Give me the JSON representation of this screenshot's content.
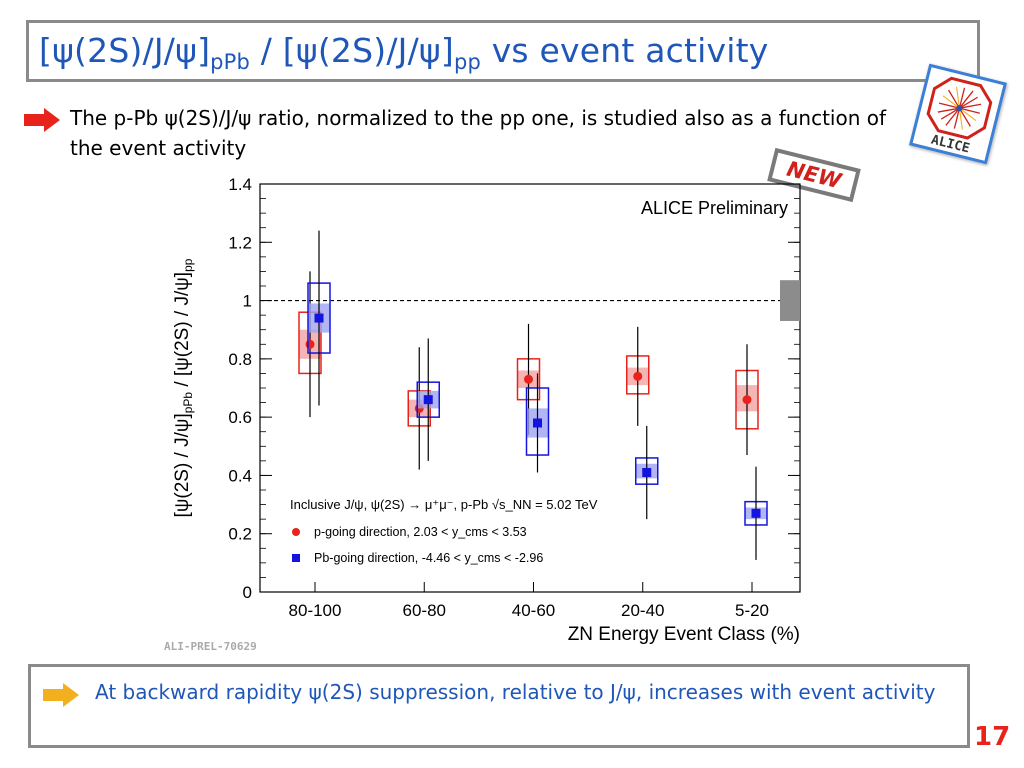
{
  "slide": {
    "title_parts": {
      "open1": "[",
      "psi2s1": "ψ(2S)/J/ψ]",
      "sub1": "pPb",
      "sep": " / [",
      "psi2s2": "ψ(2S)/J/ψ]",
      "sub2": "pp",
      "tail": " vs event activity"
    },
    "intro_text": "The p-Pb ψ(2S)/J/ψ ratio, normalized to the pp one, is studied also as a function of the event activity",
    "new_badge": "NEW",
    "logo_text": "ALICE",
    "conclusion_text": "At backward rapidity ψ(2S) suppression, relative to J/ψ, increases with event activity",
    "page_number": "17",
    "colors": {
      "title": "#1f57b8",
      "bullet_red": "#e8231c",
      "bullet_yellow": "#f2b01e",
      "page_number": "#e8231c"
    }
  },
  "chart_data": {
    "type": "scatter",
    "preliminary_label": "ALICE Preliminary",
    "watermark": "ALI-PREL-70629",
    "xlabel": "ZN Energy Event Class (%)",
    "ylabel": "[ψ(2S) / J/ψ]pPb / [ψ(2S) / J/ψ]pp",
    "ylabel_parts": {
      "a": "[ψ(2S) / J/ψ]",
      "a_sub": "pPb",
      "b": " / [ψ(2S) / J/ψ]",
      "b_sub": "pp"
    },
    "categories": [
      "80-100",
      "60-80",
      "40-60",
      "20-40",
      "5-20"
    ],
    "ylim": [
      0,
      1.4
    ],
    "yticks": [
      "0",
      "0.2",
      "0.4",
      "0.6",
      "0.8",
      "1",
      "1.2",
      "1.4"
    ],
    "reference_line": 1.0,
    "global_uncertainty": [
      0.93,
      1.07
    ],
    "legend_header": "Inclusive J/ψ, ψ(2S) → μ⁺μ⁻, p-Pb √s_NN = 5.02 TeV",
    "series": [
      {
        "name": "p-going direction, 2.03 < y_cms < 3.53",
        "color": "#e8231c",
        "marker": "circle",
        "values": [
          0.85,
          0.63,
          0.73,
          0.74,
          0.66
        ],
        "stat_err": [
          0.25,
          0.21,
          0.19,
          0.17,
          0.19
        ],
        "syst_box": [
          [
            0.75,
            0.96
          ],
          [
            0.57,
            0.69
          ],
          [
            0.66,
            0.8
          ],
          [
            0.68,
            0.81
          ],
          [
            0.56,
            0.76
          ]
        ],
        "syst_uncorr": [
          [
            0.8,
            0.9
          ],
          [
            0.6,
            0.66
          ],
          [
            0.7,
            0.76
          ],
          [
            0.71,
            0.77
          ],
          [
            0.62,
            0.71
          ]
        ]
      },
      {
        "name": "Pb-going direction, -4.46 < y_cms < -2.96",
        "color": "#1414e0",
        "marker": "square",
        "values": [
          0.94,
          0.66,
          0.58,
          0.41,
          0.27
        ],
        "stat_err": [
          0.3,
          0.21,
          0.17,
          0.16,
          0.16
        ],
        "syst_box": [
          [
            0.82,
            1.06
          ],
          [
            0.6,
            0.72
          ],
          [
            0.47,
            0.7
          ],
          [
            0.37,
            0.46
          ],
          [
            0.23,
            0.31
          ]
        ],
        "syst_uncorr": [
          [
            0.89,
            0.99
          ],
          [
            0.63,
            0.69
          ],
          [
            0.53,
            0.63
          ],
          [
            0.39,
            0.44
          ],
          [
            0.25,
            0.29
          ]
        ]
      }
    ]
  }
}
